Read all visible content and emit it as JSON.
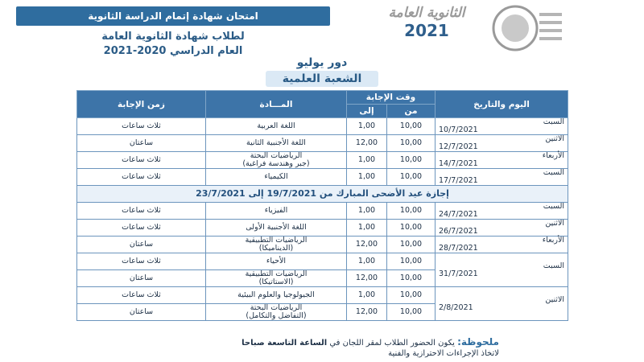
{
  "header": {
    "banner": "امتحان شهادة إتمام الدراسة الثانوية",
    "line1": "لطلاب شهادة الثانوية العامة",
    "line2": "العام الدراسي 2020-2021",
    "brand": "الثانوية العامة",
    "brand_year": "2021",
    "round": "دور يوليو",
    "branch": "الشعبة العلمية"
  },
  "table": {
    "headers": {
      "day": "اليوم والتاريخ",
      "time": "وقت الإجابة",
      "from": "من",
      "to": "إلى",
      "subject": "المـــادة",
      "duration": "زمن الإجابة"
    },
    "rows": [
      {
        "day": "السبت",
        "date": "10/7/2021",
        "sessions": [
          {
            "from": "10,00",
            "to": "1,00",
            "subject": [
              "اللغة العربية"
            ],
            "duration": "ثلاث ساعات"
          }
        ]
      },
      {
        "day": "الاثنين",
        "date": "12/7/2021",
        "sessions": [
          {
            "from": "10,00",
            "to": "12,00",
            "subject": [
              "اللغة الأجنبية الثانية"
            ],
            "duration": "ساعتان"
          }
        ]
      },
      {
        "day": "الأربعاء",
        "date": "14/7/2021",
        "sessions": [
          {
            "from": "10,00",
            "to": "1,00",
            "subject": [
              "الرياضيات البحتة",
              "(جبر وهندسة فراغية)"
            ],
            "duration": "ثلاث ساعات"
          }
        ]
      },
      {
        "day": "السبت",
        "date": "17/7/2021",
        "sessions": [
          {
            "from": "10,00",
            "to": "1,00",
            "subject": [
              "الكيمياء"
            ],
            "duration": "ثلاث ساعات"
          }
        ]
      },
      {
        "holiday": {
          "label": "إجازة عيد الأضحى المبارك من",
          "from": "19/7/2021",
          "joiner": "إلى",
          "to": "23/7/2021"
        }
      },
      {
        "day": "السبت",
        "date": "24/7/2021",
        "sessions": [
          {
            "from": "10,00",
            "to": "1,00",
            "subject": [
              "الفيزياء"
            ],
            "duration": "ثلاث ساعات"
          }
        ]
      },
      {
        "day": "الاثنين",
        "date": "26/7/2021",
        "sessions": [
          {
            "from": "10,00",
            "to": "1,00",
            "subject": [
              "اللغة الأجنبية الأولى"
            ],
            "duration": "ثلاث ساعات"
          }
        ]
      },
      {
        "day": "الأربعاء",
        "date": "28/7/2021",
        "sessions": [
          {
            "from": "10,00",
            "to": "12,00",
            "subject": [
              "الرياضيات التطبيقية",
              "(الديناميكا)"
            ],
            "duration": "ساعتان"
          }
        ]
      },
      {
        "day": "السبت",
        "date": "31/7/2021",
        "sessions": [
          {
            "from": "10,00",
            "to": "1,00",
            "subject": [
              "الأحياء"
            ],
            "duration": "ثلاث ساعات"
          },
          {
            "from": "10,00",
            "to": "12,00",
            "subject": [
              "الرياضيات التطبيقية",
              "(الاستاتيكا)"
            ],
            "duration": "ساعتان"
          }
        ]
      },
      {
        "day": "الاثنين",
        "date": "2/8/2021",
        "sessions": [
          {
            "from": "10,00",
            "to": "1,00",
            "subject": [
              "الجيولوجيا والعلوم البيئية"
            ],
            "duration": "ثلاث ساعات"
          },
          {
            "from": "10,00",
            "to": "12,00",
            "subject": [
              "الرياضيات البحتة",
              "(التفاضل والتكامل)"
            ],
            "duration": "ساعتان"
          }
        ]
      }
    ]
  },
  "note": {
    "label": "ملحوظة:",
    "text": "يكون الحضور الطلاب لمقر اللجان في",
    "time": "الساعة التاسعة صباحا",
    "text2": "لاتخاذ الإجراءات الاحترازية والفنية"
  }
}
